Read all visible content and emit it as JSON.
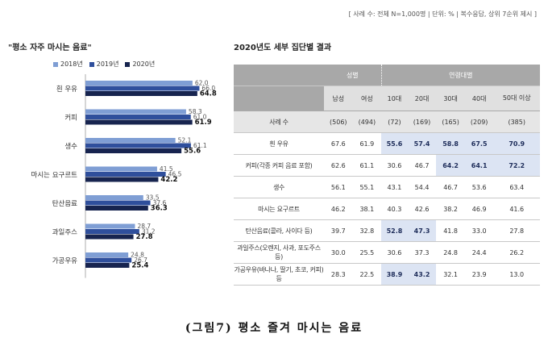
{
  "note": "[ 사례 수: 전체 N=1,000명 | 단위: % | 복수응답, 상위 7순위 제시 ]",
  "chart_data": [
    {
      "type": "bar",
      "orientation": "horizontal",
      "title": "\"평소 자주 마시는 음료\"",
      "categories": [
        "흰 우유",
        "커피",
        "생수",
        "마시는 요구르트",
        "탄산음료",
        "과일주스",
        "가공우유"
      ],
      "series": [
        {
          "name": "2018년",
          "color": "#7f9ed4",
          "values": [
            62.0,
            58.3,
            52.1,
            41.5,
            33.5,
            28.7,
            24.8
          ]
        },
        {
          "name": "2019년",
          "color": "#2f4f9c",
          "values": [
            66.0,
            61.0,
            61.1,
            46.5,
            37.6,
            31.2,
            26.7
          ]
        },
        {
          "name": "2020년",
          "color": "#17244f",
          "values": [
            64.8,
            61.9,
            55.6,
            42.2,
            36.3,
            27.8,
            25.4
          ]
        }
      ],
      "xlim": [
        0,
        70
      ]
    },
    {
      "type": "table",
      "title": "2020년도 세부 집단별 결과",
      "group_headers": [
        "성별",
        "연령대별"
      ],
      "columns": [
        "남성",
        "여성",
        "10대",
        "20대",
        "30대",
        "40대",
        "50대 이상"
      ],
      "sample_row": {
        "label": "사례 수",
        "values": [
          "(506)",
          "(494)",
          "(72)",
          "(169)",
          "(165)",
          "(209)",
          "(385)"
        ]
      },
      "rows": [
        {
          "label": "흰 우유",
          "values": [
            "67.6",
            "61.9",
            "55.6",
            "57.4",
            "58.8",
            "67.5",
            "70.9"
          ],
          "highlight": [
            2,
            3,
            4,
            5,
            6
          ]
        },
        {
          "label": "커피(각종 커피 음료 포함)",
          "values": [
            "62.6",
            "61.1",
            "30.6",
            "46.7",
            "64.2",
            "64.1",
            "72.2"
          ],
          "highlight": [
            4,
            5,
            6
          ]
        },
        {
          "label": "생수",
          "values": [
            "56.1",
            "55.1",
            "43.1",
            "54.4",
            "46.7",
            "53.6",
            "63.4"
          ],
          "highlight": []
        },
        {
          "label": "마시는 요구르트",
          "values": [
            "46.2",
            "38.1",
            "40.3",
            "42.6",
            "38.2",
            "46.9",
            "41.6"
          ],
          "highlight": []
        },
        {
          "label": "탄산음료(콜라, 사이다 등)",
          "values": [
            "39.7",
            "32.8",
            "52.8",
            "47.3",
            "41.8",
            "33.0",
            "27.8"
          ],
          "highlight": [
            2,
            3
          ]
        },
        {
          "label": "과일주스(오렌지, 사과, 포도주스 등)",
          "values": [
            "30.0",
            "25.5",
            "30.6",
            "37.3",
            "24.8",
            "24.4",
            "26.2"
          ],
          "highlight": []
        },
        {
          "label": "가공우유(바나나, 딸기, 초코, 커피)등",
          "values": [
            "28.3",
            "22.5",
            "38.9",
            "43.2",
            "32.1",
            "23.9",
            "13.0"
          ],
          "highlight": [
            2,
            3
          ]
        }
      ]
    }
  ],
  "caption": "(그림7) 평소 즐겨 마시는 음료"
}
